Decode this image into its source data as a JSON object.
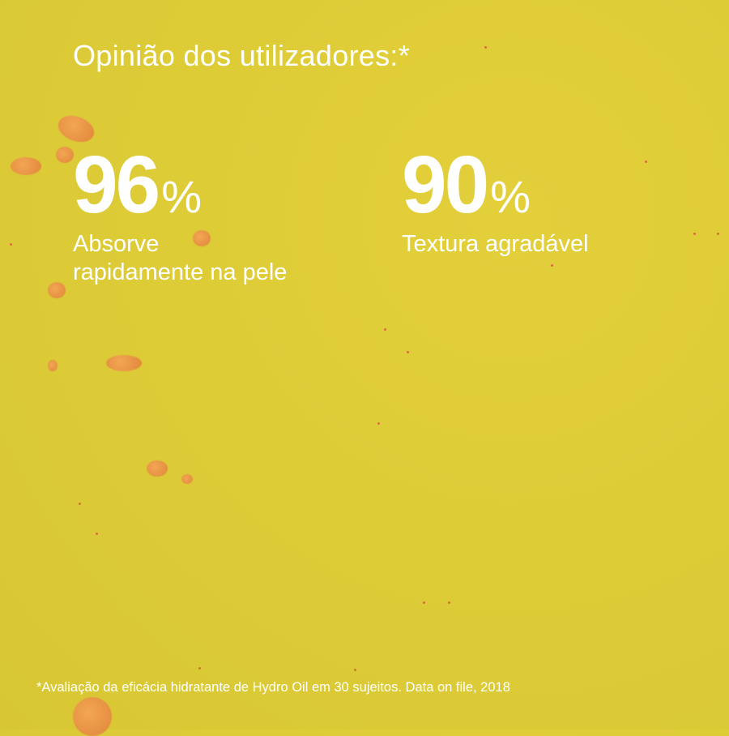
{
  "title": "Opinião dos utilizadores:*",
  "stats": [
    {
      "value": "96",
      "unit": "%",
      "label_line1": "Absorve",
      "label_line2": "rapidamente na pele"
    },
    {
      "value": "90",
      "unit": "%",
      "label_line1": "Textura agradável",
      "label_line2": ""
    }
  ],
  "footnote": "*Avaliação da eficácia hidratante de Hydro Oil em 30 sujeitos. Data on file, 2018",
  "colors": {
    "background": "#dfcd36",
    "text": "#ffffff",
    "droplets": "#ea9444"
  }
}
